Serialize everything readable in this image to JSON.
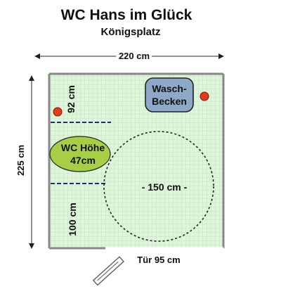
{
  "title": "WC Hans im Glück",
  "subtitle": "Königsplatz",
  "dimensions": {
    "width": "220 cm",
    "depth": "225 cm",
    "upper_wall_section": "92 cm",
    "lower_wall_section": "100 cm",
    "turning_circle": "- 150 cm -",
    "door": "Tür 95 cm"
  },
  "fixtures": {
    "toilet_line1": "WC Höhe",
    "toilet_line2": "47cm",
    "sink_line1": "Wasch-",
    "sink_line2": "Becken"
  },
  "colors": {
    "floor": "#dff5dc",
    "grid": "#b8e3b4",
    "wall": "#888888",
    "toilet": "#a6cf45",
    "sink": "#8ea8c8",
    "grab_marker": "#e53a1e",
    "grab_bar": "#1e2d7a",
    "circle": "#222222"
  }
}
